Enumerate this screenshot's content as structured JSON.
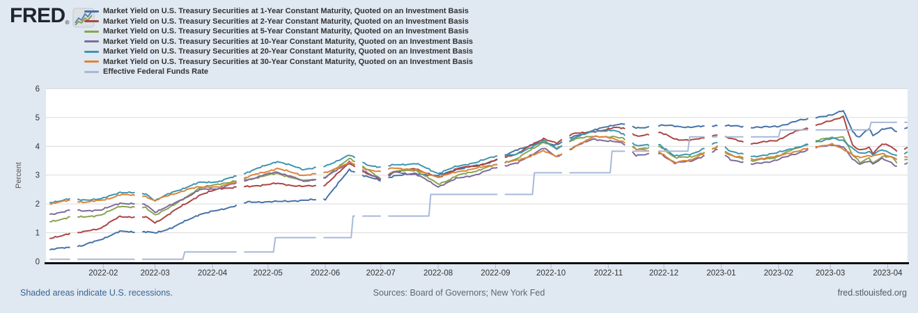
{
  "header": {
    "logo_text": "FRED",
    "logo_registered": "®"
  },
  "footer": {
    "recessions_note": "Shaded areas indicate U.S. recessions.",
    "sources": "Sources: Board of Governors; New York Fed",
    "site": "fred.stlouisfed.org"
  },
  "chart_data": {
    "type": "line",
    "title": "",
    "xlabel": "",
    "ylabel": "Percent",
    "ylim": [
      0,
      6
    ],
    "yticks": [
      0,
      1,
      2,
      3,
      4,
      5,
      6
    ],
    "grid": true,
    "legend_position": "top-left",
    "x_start": "2022-01-03",
    "x_end": "2023-04-12",
    "xtick_labels": [
      "2022-02",
      "2022-03",
      "2022-04",
      "2022-05",
      "2022-06",
      "2022-07",
      "2022-08",
      "2022-09",
      "2022-10",
      "2022-11",
      "2022-12",
      "2023-01",
      "2023-02",
      "2023-03",
      "2023-04"
    ],
    "holiday_gaps": [
      "2022-01-17",
      "2022-02-21",
      "2022-04-15",
      "2022-05-30",
      "2022-06-20",
      "2022-07-04",
      "2022-09-05",
      "2022-10-10",
      "2022-11-11",
      "2022-11-24",
      "2022-11-25",
      "2022-12-26",
      "2023-01-02",
      "2023-01-16",
      "2023-02-20",
      "2023-04-07"
    ],
    "anchor_dates": [
      "2022-01-03",
      "2022-01-14",
      "2022-01-21",
      "2022-01-31",
      "2022-02-10",
      "2022-02-24",
      "2022-03-01",
      "2022-03-11",
      "2022-03-25",
      "2022-04-05",
      "2022-04-20",
      "2022-05-06",
      "2022-05-20",
      "2022-06-01",
      "2022-06-14",
      "2022-06-23",
      "2022-07-01",
      "2022-07-08",
      "2022-07-20",
      "2022-08-01",
      "2022-08-11",
      "2022-08-22",
      "2022-09-01",
      "2022-09-13",
      "2022-09-27",
      "2022-10-04",
      "2022-10-14",
      "2022-10-24",
      "2022-11-04",
      "2022-11-09",
      "2022-11-16",
      "2022-11-29",
      "2022-12-07",
      "2022-12-16",
      "2022-12-30",
      "2023-01-06",
      "2023-01-18",
      "2023-01-31",
      "2023-02-10",
      "2023-02-21",
      "2023-03-02",
      "2023-03-08",
      "2023-03-13",
      "2023-03-15",
      "2023-03-17",
      "2023-03-22",
      "2023-03-24",
      "2023-03-29",
      "2023-04-03",
      "2023-04-06",
      "2023-04-12"
    ],
    "series": [
      {
        "name": "1-Year",
        "label": "Market Yield on U.S. Treasury Securities at 1-Year Constant Maturity, Quoted on an Investment Basis",
        "color": "#4572A7",
        "values": [
          0.4,
          0.51,
          0.55,
          0.78,
          1.04,
          1.03,
          0.98,
          1.2,
          1.64,
          1.79,
          2.06,
          2.08,
          2.12,
          2.17,
          3.18,
          2.96,
          2.8,
          2.98,
          3.05,
          2.98,
          3.2,
          3.33,
          3.51,
          3.9,
          4.15,
          4.05,
          4.36,
          4.55,
          4.75,
          4.78,
          4.63,
          4.73,
          4.7,
          4.66,
          4.73,
          4.71,
          4.66,
          4.68,
          4.86,
          5.01,
          5.08,
          5.25,
          4.55,
          4.35,
          4.32,
          4.62,
          4.38,
          4.6,
          4.62,
          4.48,
          4.68
        ]
      },
      {
        "name": "2-Year",
        "label": "Market Yield on U.S. Treasury Securities at 2-Year Constant Maturity, Quoted on an Investment Basis",
        "color": "#AA4643",
        "values": [
          0.78,
          0.99,
          1.01,
          1.18,
          1.56,
          1.54,
          1.34,
          1.75,
          2.3,
          2.54,
          2.6,
          2.71,
          2.6,
          2.66,
          3.42,
          3.06,
          2.84,
          3.1,
          3.23,
          2.9,
          3.23,
          3.32,
          3.51,
          3.76,
          4.28,
          4.1,
          4.48,
          4.48,
          4.66,
          4.62,
          4.36,
          4.47,
          4.26,
          4.2,
          4.41,
          4.26,
          4.09,
          4.21,
          4.5,
          4.73,
          4.89,
          5.05,
          4.03,
          3.93,
          3.85,
          3.97,
          3.77,
          4.08,
          3.98,
          3.82,
          3.97
        ]
      },
      {
        "name": "5-Year",
        "label": "Market Yield on U.S. Treasury Securities at 5-Year Constant Maturity, Quoted on an Investment Basis",
        "color": "#89A54E",
        "values": [
          1.37,
          1.55,
          1.54,
          1.62,
          1.92,
          1.86,
          1.62,
          1.95,
          2.55,
          2.7,
          2.85,
          3.06,
          2.8,
          2.91,
          3.6,
          3.21,
          2.88,
          3.13,
          3.17,
          2.68,
          2.97,
          3.16,
          3.35,
          3.58,
          4.16,
          3.91,
          4.27,
          4.34,
          4.33,
          4.27,
          3.91,
          3.98,
          3.62,
          3.62,
          3.99,
          3.7,
          3.48,
          3.63,
          3.92,
          4.18,
          4.31,
          4.33,
          3.68,
          3.58,
          3.44,
          3.61,
          3.41,
          3.63,
          3.64,
          3.45,
          3.57
        ]
      },
      {
        "name": "10-Year",
        "label": "Market Yield on U.S. Treasury Securities at 10-Year Constant Maturity, Quoted on an Investment Basis",
        "color": "#80699B",
        "values": [
          1.63,
          1.78,
          1.76,
          1.79,
          2.03,
          1.97,
          1.72,
          2.0,
          2.48,
          2.55,
          2.84,
          3.12,
          2.79,
          2.91,
          3.47,
          3.09,
          2.88,
          3.09,
          3.03,
          2.6,
          2.88,
          3.02,
          3.26,
          3.42,
          3.95,
          3.62,
          4.0,
          4.25,
          4.16,
          4.1,
          3.69,
          3.75,
          3.42,
          3.49,
          3.88,
          3.55,
          3.37,
          3.52,
          3.74,
          3.95,
          4.06,
          3.98,
          3.55,
          3.46,
          3.39,
          3.5,
          3.38,
          3.57,
          3.43,
          3.3,
          3.43
        ]
      },
      {
        "name": "20-Year",
        "label": "Market Yield on U.S. Treasury Securities at 20-Year Constant Maturity, Quoted on an Investment Basis",
        "color": "#3D96AE",
        "values": [
          2.05,
          2.17,
          2.14,
          2.17,
          2.41,
          2.35,
          2.12,
          2.42,
          2.74,
          2.78,
          3.1,
          3.48,
          3.2,
          3.3,
          3.7,
          3.37,
          3.27,
          3.35,
          3.4,
          3.06,
          3.3,
          3.45,
          3.66,
          3.72,
          4.2,
          3.91,
          4.3,
          4.53,
          4.54,
          4.44,
          4.02,
          4.05,
          3.66,
          3.73,
          4.14,
          3.84,
          3.63,
          3.77,
          3.95,
          4.13,
          4.29,
          4.19,
          3.92,
          3.86,
          3.76,
          3.81,
          3.7,
          3.88,
          3.76,
          3.67,
          3.78
        ]
      },
      {
        "name": "30-Year",
        "label": "Market Yield on U.S. Treasury Securities at 30-Year Constant Maturity, Quoted on an Investment Basis",
        "color": "#DB843D",
        "values": [
          2.01,
          2.12,
          2.07,
          2.11,
          2.32,
          2.27,
          2.11,
          2.36,
          2.6,
          2.58,
          2.94,
          3.23,
          2.99,
          3.08,
          3.43,
          3.21,
          3.11,
          3.26,
          3.17,
          2.93,
          3.11,
          3.24,
          3.37,
          3.51,
          3.83,
          3.66,
          3.97,
          4.36,
          4.26,
          4.17,
          3.89,
          3.8,
          3.42,
          3.55,
          3.97,
          3.69,
          3.54,
          3.65,
          3.82,
          3.98,
          4.08,
          3.88,
          3.72,
          3.66,
          3.63,
          3.66,
          3.64,
          3.76,
          3.64,
          3.55,
          3.63
        ]
      },
      {
        "name": "Effective Federal Funds Rate",
        "label": "Effective Federal Funds Rate",
        "color": "#A6B8D9",
        "steps": [
          {
            "from": "2022-01-03",
            "to": "2022-03-16",
            "value": 0.08
          },
          {
            "from": "2022-03-17",
            "to": "2022-05-04",
            "value": 0.33
          },
          {
            "from": "2022-05-05",
            "to": "2022-06-15",
            "value": 0.83
          },
          {
            "from": "2022-06-16",
            "to": "2022-07-27",
            "value": 1.58
          },
          {
            "from": "2022-07-28",
            "to": "2022-09-21",
            "value": 2.33
          },
          {
            "from": "2022-09-22",
            "to": "2022-11-02",
            "value": 3.08
          },
          {
            "from": "2022-11-03",
            "to": "2022-12-14",
            "value": 3.83
          },
          {
            "from": "2022-12-15",
            "to": "2023-02-01",
            "value": 4.33
          },
          {
            "from": "2023-02-02",
            "to": "2023-03-22",
            "value": 4.57
          },
          {
            "from": "2023-03-23",
            "to": "2023-04-12",
            "value": 4.83
          }
        ]
      }
    ]
  }
}
